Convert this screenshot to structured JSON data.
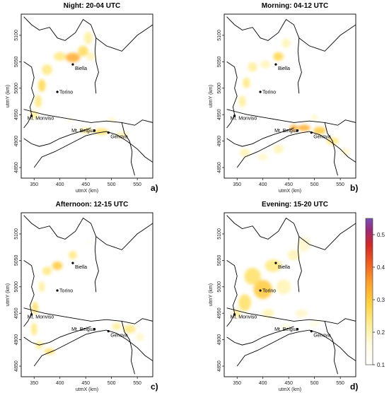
{
  "figure": {
    "panels": [
      {
        "id": "a",
        "title": "Night: 20-04 UTC",
        "label": "a)"
      },
      {
        "id": "b",
        "title": "Morning: 04-12 UTC",
        "label": "b)"
      },
      {
        "id": "c",
        "title": "Afternoon: 12-15 UTC",
        "label": "c)"
      },
      {
        "id": "d",
        "title": "Evening: 15-20 UTC",
        "label": "d)"
      }
    ],
    "xlabel": "utmX (km)",
    "ylabel": "utmY (km)",
    "x_ticks": [
      "350",
      "400",
      "450",
      "500",
      "550"
    ],
    "y_ticks": [
      "4850",
      "4900",
      "4950",
      "5000",
      "5050",
      "5100"
    ],
    "cities": [
      "Biella",
      "Torino",
      "Mt. Monviso",
      "Mt. Beigua",
      "Genova"
    ],
    "colorbar": {
      "ticks": [
        "0.1",
        "0.2",
        "0.3",
        "0.4",
        "0.5"
      ],
      "colors": [
        "#ffffff",
        "#fff3a0",
        "#ffd23c",
        "#ffa028",
        "#f05a1e",
        "#d22828",
        "#9a2a78",
        "#7a50b4"
      ]
    }
  },
  "chart_data": {
    "type": "heatmap",
    "xlabel": "utmX (km)",
    "ylabel": "utmY (km)",
    "xlim": [
      325,
      580
    ],
    "ylim": [
      4830,
      5140
    ],
    "color_range": [
      0.1,
      0.55
    ],
    "cities": [
      {
        "name": "Biella",
        "x": 425,
        "y": 5045
      },
      {
        "name": "Torino",
        "x": 395,
        "y": 4993
      },
      {
        "name": "Mt. Monviso",
        "x": 345,
        "y": 4948
      },
      {
        "name": "Mt. Beigua",
        "x": 467,
        "y": 4920
      },
      {
        "name": "Genova",
        "x": 494,
        "y": 4916
      }
    ],
    "panels": [
      {
        "id": "a",
        "title": "Night: 20-04 UTC",
        "hotspots": [
          {
            "x": 400,
            "y": 5060,
            "sx": 12,
            "sy": 8,
            "v": 0.24
          },
          {
            "x": 425,
            "y": 5058,
            "sx": 14,
            "sy": 9,
            "v": 0.34
          },
          {
            "x": 445,
            "y": 5070,
            "sx": 10,
            "sy": 10,
            "v": 0.27
          },
          {
            "x": 455,
            "y": 5095,
            "sx": 8,
            "sy": 12,
            "v": 0.22
          },
          {
            "x": 460,
            "y": 5060,
            "sx": 8,
            "sy": 8,
            "v": 0.2
          },
          {
            "x": 375,
            "y": 5035,
            "sx": 10,
            "sy": 10,
            "v": 0.24
          },
          {
            "x": 365,
            "y": 5005,
            "sx": 7,
            "sy": 12,
            "v": 0.28
          },
          {
            "x": 358,
            "y": 4975,
            "sx": 7,
            "sy": 12,
            "v": 0.24
          },
          {
            "x": 350,
            "y": 4950,
            "sx": 8,
            "sy": 8,
            "v": 0.22
          },
          {
            "x": 450,
            "y": 4920,
            "sx": 12,
            "sy": 6,
            "v": 0.22
          },
          {
            "x": 480,
            "y": 4918,
            "sx": 14,
            "sy": 6,
            "v": 0.26
          },
          {
            "x": 520,
            "y": 4912,
            "sx": 12,
            "sy": 6,
            "v": 0.2
          },
          {
            "x": 500,
            "y": 4940,
            "sx": 7,
            "sy": 5,
            "v": 0.18
          },
          {
            "x": 420,
            "y": 4940,
            "sx": 6,
            "sy": 4,
            "v": 0.16
          }
        ]
      },
      {
        "id": "b",
        "title": "Morning: 04-12 UTC",
        "hotspots": [
          {
            "x": 430,
            "y": 5060,
            "sx": 10,
            "sy": 8,
            "v": 0.28
          },
          {
            "x": 445,
            "y": 5085,
            "sx": 8,
            "sy": 9,
            "v": 0.2
          },
          {
            "x": 405,
            "y": 5045,
            "sx": 10,
            "sy": 7,
            "v": 0.2
          },
          {
            "x": 380,
            "y": 5040,
            "sx": 9,
            "sy": 9,
            "v": 0.22
          },
          {
            "x": 368,
            "y": 5010,
            "sx": 7,
            "sy": 10,
            "v": 0.24
          },
          {
            "x": 360,
            "y": 4975,
            "sx": 7,
            "sy": 11,
            "v": 0.22
          },
          {
            "x": 460,
            "y": 4925,
            "sx": 8,
            "sy": 6,
            "v": 0.34
          },
          {
            "x": 480,
            "y": 4925,
            "sx": 12,
            "sy": 6,
            "v": 0.34
          },
          {
            "x": 510,
            "y": 4920,
            "sx": 12,
            "sy": 7,
            "v": 0.3
          },
          {
            "x": 535,
            "y": 4900,
            "sx": 12,
            "sy": 7,
            "v": 0.24
          },
          {
            "x": 560,
            "y": 4880,
            "sx": 9,
            "sy": 7,
            "v": 0.18
          },
          {
            "x": 430,
            "y": 4885,
            "sx": 10,
            "sy": 8,
            "v": 0.2
          },
          {
            "x": 400,
            "y": 4870,
            "sx": 9,
            "sy": 7,
            "v": 0.18
          },
          {
            "x": 365,
            "y": 4878,
            "sx": 10,
            "sy": 8,
            "v": 0.2
          },
          {
            "x": 500,
            "y": 4945,
            "sx": 6,
            "sy": 6,
            "v": 0.18
          }
        ]
      },
      {
        "id": "c",
        "title": "Afternoon: 12-15 UTC",
        "hotspots": [
          {
            "x": 425,
            "y": 5060,
            "sx": 8,
            "sy": 8,
            "v": 0.24
          },
          {
            "x": 395,
            "y": 5040,
            "sx": 10,
            "sy": 8,
            "v": 0.3
          },
          {
            "x": 375,
            "y": 5030,
            "sx": 9,
            "sy": 8,
            "v": 0.24
          },
          {
            "x": 365,
            "y": 5000,
            "sx": 6,
            "sy": 10,
            "v": 0.22
          },
          {
            "x": 352,
            "y": 4960,
            "sx": 6,
            "sy": 12,
            "v": 0.26
          },
          {
            "x": 350,
            "y": 4920,
            "sx": 6,
            "sy": 12,
            "v": 0.24
          },
          {
            "x": 360,
            "y": 4890,
            "sx": 8,
            "sy": 8,
            "v": 0.22
          },
          {
            "x": 380,
            "y": 4878,
            "sx": 10,
            "sy": 6,
            "v": 0.26
          },
          {
            "x": 510,
            "y": 4925,
            "sx": 9,
            "sy": 7,
            "v": 0.22
          },
          {
            "x": 535,
            "y": 4920,
            "sx": 12,
            "sy": 8,
            "v": 0.24
          },
          {
            "x": 555,
            "y": 4905,
            "sx": 8,
            "sy": 8,
            "v": 0.18
          },
          {
            "x": 455,
            "y": 5085,
            "sx": 5,
            "sy": 5,
            "v": 0.14
          }
        ]
      },
      {
        "id": "d",
        "title": "Evening: 15-20 UTC",
        "hotspots": [
          {
            "x": 400,
            "y": 4995,
            "sx": 18,
            "sy": 18,
            "v": 0.3
          },
          {
            "x": 380,
            "y": 5020,
            "sx": 16,
            "sy": 16,
            "v": 0.26
          },
          {
            "x": 365,
            "y": 4970,
            "sx": 12,
            "sy": 16,
            "v": 0.26
          },
          {
            "x": 420,
            "y": 5040,
            "sx": 16,
            "sy": 12,
            "v": 0.24
          },
          {
            "x": 440,
            "y": 5000,
            "sx": 14,
            "sy": 14,
            "v": 0.2
          },
          {
            "x": 350,
            "y": 4950,
            "sx": 8,
            "sy": 8,
            "v": 0.22
          },
          {
            "x": 460,
            "y": 5060,
            "sx": 12,
            "sy": 10,
            "v": 0.2
          },
          {
            "x": 480,
            "y": 5080,
            "sx": 12,
            "sy": 14,
            "v": 0.18
          },
          {
            "x": 475,
            "y": 4950,
            "sx": 12,
            "sy": 8,
            "v": 0.18
          },
          {
            "x": 500,
            "y": 4930,
            "sx": 10,
            "sy": 6,
            "v": 0.16
          },
          {
            "x": 410,
            "y": 4950,
            "sx": 12,
            "sy": 8,
            "v": 0.2
          },
          {
            "x": 445,
            "y": 4925,
            "sx": 10,
            "sy": 6,
            "v": 0.16
          }
        ]
      }
    ]
  }
}
